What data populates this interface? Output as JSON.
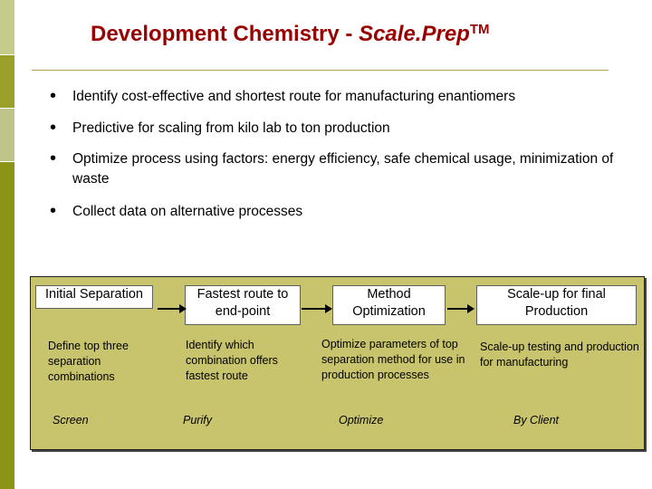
{
  "title": {
    "text_part1": "Development Chemistry - ",
    "text_part2": "Scale.Prep",
    "tm": "TM"
  },
  "bullets": [
    "Identify cost-effective and shortest route for manufacturing enantiomers",
    "Predictive for scaling from kilo lab to ton production",
    "Optimize process using factors: energy efficiency, safe chemical usage, minimization of waste",
    "Collect data on alternative processes"
  ],
  "bullet_glyph": "•",
  "process": {
    "steps": [
      {
        "box": "Initial Separation",
        "desc": "Define top three separation combinations",
        "footer": "Screen"
      },
      {
        "box": "Fastest route to end-point",
        "desc": "Identify which combination offers fastest route",
        "footer": "Purify"
      },
      {
        "box": "Method Optimization",
        "desc": "Optimize parameters of top separation method for use in production processes",
        "footer": "Optimize"
      },
      {
        "box": "Scale-up for final Production",
        "desc": "Scale-up testing and production for manufacturing",
        "footer": "By Client"
      }
    ]
  },
  "colors": {
    "title": "#990000",
    "panel": "#c8c46d",
    "sidebar_dark": "#8c9418",
    "rule": "#b8a24a"
  }
}
